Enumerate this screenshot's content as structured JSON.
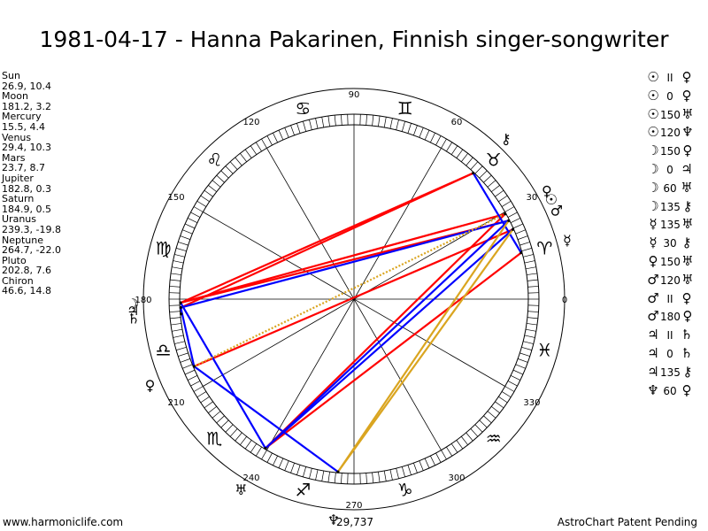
{
  "title": "1981-04-17 - Hanna Pakarinen, Finnish singer-songwriter",
  "footer": {
    "left": "www.harmoniclife.com",
    "right": "AstroChart Patent Pending",
    "cumulative": "29,737"
  },
  "positions": [
    {
      "name": "Sun",
      "coords": "26.9, 10.4"
    },
    {
      "name": "Moon",
      "coords": "181.2, 3.2"
    },
    {
      "name": "Mercury",
      "coords": "15.5, 4.4"
    },
    {
      "name": "Venus",
      "coords": "29.4, 10.3"
    },
    {
      "name": "Mars",
      "coords": "23.7, 8.7"
    },
    {
      "name": "Jupiter",
      "coords": "182.8, 0.3"
    },
    {
      "name": "Saturn",
      "coords": "184.9, 0.5"
    },
    {
      "name": "Uranus",
      "coords": "239.3, -19.8"
    },
    {
      "name": "Neptune",
      "coords": "264.7, -22.0"
    },
    {
      "name": "Pluto",
      "coords": "202.8, 7.6"
    },
    {
      "name": "Chiron",
      "coords": "46.6, 14.8"
    }
  ],
  "aspects": [
    {
      "p1": "☉",
      "asp": "II",
      "p2": "♀"
    },
    {
      "p1": "☉",
      "asp": "0",
      "p2": "♀"
    },
    {
      "p1": "☉",
      "asp": "150",
      "p2": "♅"
    },
    {
      "p1": "☉",
      "asp": "120",
      "p2": "♆"
    },
    {
      "p1": "☽",
      "asp": "150",
      "p2": "♀"
    },
    {
      "p1": "☽",
      "asp": "0",
      "p2": "♃"
    },
    {
      "p1": "☽",
      "asp": "60",
      "p2": "♅"
    },
    {
      "p1": "☽",
      "asp": "135",
      "p2": "⚷"
    },
    {
      "p1": "☿",
      "asp": "135",
      "p2": "♅"
    },
    {
      "p1": "☿",
      "asp": "30",
      "p2": "⚷"
    },
    {
      "p1": "♀",
      "asp": "150",
      "p2": "♅"
    },
    {
      "p1": "♂",
      "asp": "120",
      "p2": "♅"
    },
    {
      "p1": "♂",
      "asp": "II",
      "p2": "♀"
    },
    {
      "p1": "♂",
      "asp": "180",
      "p2": "♀"
    },
    {
      "p1": "♃",
      "asp": "II",
      "p2": "♄"
    },
    {
      "p1": "♃",
      "asp": "0",
      "p2": "♄"
    },
    {
      "p1": "♃",
      "asp": "135",
      "p2": "⚷"
    },
    {
      "p1": "♆",
      "asp": "60",
      "p2": "♀"
    }
  ],
  "chart_data": {
    "type": "polar",
    "degree_labels": [
      "0",
      "30",
      "60",
      "90",
      "120",
      "150",
      "180",
      "210",
      "240",
      "270",
      "300",
      "330"
    ],
    "zodiac_signs": [
      "♈",
      "♉",
      "♊",
      "♋",
      "♌",
      "♍",
      "♎",
      "♏",
      "♐",
      "♑",
      "♒",
      "♓"
    ],
    "planets": [
      {
        "glyph": "☉",
        "lon": 26.9
      },
      {
        "glyph": "☽",
        "lon": 181.2
      },
      {
        "glyph": "☿",
        "lon": 15.5
      },
      {
        "glyph": "♀",
        "lon": 29.4
      },
      {
        "glyph": "♂",
        "lon": 23.7
      },
      {
        "glyph": "♃",
        "lon": 182.8
      },
      {
        "glyph": "♄",
        "lon": 184.9
      },
      {
        "glyph": "♅",
        "lon": 239.3
      },
      {
        "glyph": "♆",
        "lon": 264.7
      },
      {
        "glyph": "♀",
        "lon": 202.8
      },
      {
        "glyph": "⚷",
        "lon": 46.6
      }
    ],
    "aspect_lines": [
      {
        "a": 26.9,
        "b": 181.2,
        "color": "#ff0000"
      },
      {
        "a": 29.4,
        "b": 181.2,
        "color": "#ff0000"
      },
      {
        "a": 46.6,
        "b": 181.2,
        "color": "#ff0000"
      },
      {
        "a": 46.6,
        "b": 182.8,
        "color": "#ff0000"
      },
      {
        "a": 23.7,
        "b": 202.8,
        "color": "#ff0000"
      },
      {
        "a": 15.5,
        "b": 239.3,
        "color": "#ff0000"
      },
      {
        "a": 29.4,
        "b": 239.3,
        "color": "#ff0000"
      },
      {
        "a": 26.9,
        "b": 182.8,
        "color": "#0000ff"
      },
      {
        "a": 26.9,
        "b": 239.3,
        "color": "#0000ff"
      },
      {
        "a": 23.7,
        "b": 239.3,
        "color": "#0000ff"
      },
      {
        "a": 46.6,
        "b": 15.5,
        "color": "#0000ff"
      },
      {
        "a": 181.2,
        "b": 239.3,
        "color": "#0000ff"
      },
      {
        "a": 202.8,
        "b": 264.7,
        "color": "#0000ff"
      },
      {
        "a": 182.8,
        "b": 202.8,
        "color": "#0000ff"
      },
      {
        "a": 26.9,
        "b": 264.7,
        "color": "#daa520"
      },
      {
        "a": 23.7,
        "b": 264.7,
        "color": "#daa520"
      },
      {
        "a": 29.4,
        "b": 202.8,
        "color": "#daa520",
        "dashed": true
      }
    ]
  }
}
